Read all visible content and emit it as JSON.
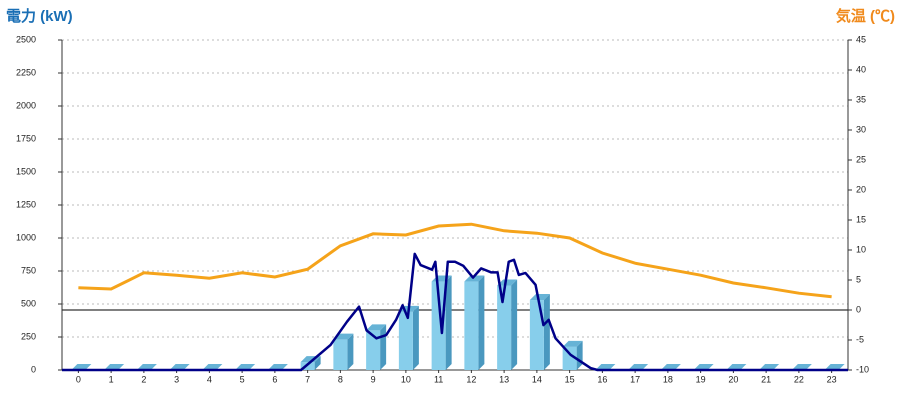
{
  "chart_data": {
    "type": "bar",
    "y_title": "電力 (kW)",
    "y2_title": "気温 (℃)",
    "categories": [
      "0",
      "1",
      "2",
      "3",
      "4",
      "5",
      "6",
      "7",
      "8",
      "9",
      "10",
      "11",
      "12",
      "13",
      "14",
      "15",
      "16",
      "17",
      "18",
      "19",
      "20",
      "21",
      "22",
      "23"
    ],
    "xlim": [
      -0.5,
      23.5
    ],
    "ylim": [
      0,
      2500
    ],
    "yticks": [
      0,
      250,
      500,
      750,
      1000,
      1250,
      1500,
      1750,
      2000,
      2250,
      2500
    ],
    "y2lim": [
      -10,
      45
    ],
    "y2ticks": [
      -10,
      -5,
      0,
      5,
      10,
      15,
      20,
      25,
      30,
      35,
      40,
      45
    ],
    "grid": true,
    "bars": {
      "color": "#87ceeb",
      "values": [
        0,
        0,
        0,
        0,
        0,
        0,
        0,
        60,
        230,
        300,
        440,
        670,
        670,
        640,
        530,
        175,
        0,
        0,
        0,
        0,
        0,
        0,
        0,
        0
      ]
    },
    "power_line": {
      "color": "#000088",
      "x": [
        -0.5,
        6.8,
        7.7,
        8.2,
        8.57,
        8.8,
        9.1,
        9.4,
        9.7,
        9.9,
        10.06,
        10.27,
        10.45,
        10.8,
        10.9,
        11.1,
        11.28,
        11.5,
        11.75,
        12.05,
        12.3,
        12.6,
        12.8,
        12.95,
        13.14,
        13.3,
        13.45,
        13.65,
        13.96,
        14.2,
        14.36,
        14.57,
        15.03,
        15.64,
        15.85,
        23.5
      ],
      "values": [
        0,
        0,
        190,
        365,
        480,
        300,
        240,
        265,
        380,
        490,
        395,
        880,
        795,
        760,
        820,
        280,
        820,
        820,
        790,
        700,
        770,
        740,
        740,
        515,
        820,
        835,
        720,
        735,
        645,
        340,
        380,
        240,
        115,
        15,
        0,
        0
      ]
    },
    "temperature": {
      "color": "#f5a31a",
      "axis": "y2",
      "values": [
        3.7,
        3.5,
        6.2,
        5.8,
        5.3,
        6.2,
        5.5,
        6.8,
        10.7,
        12.7,
        12.5,
        14,
        14.3,
        13.2,
        12.8,
        12,
        9.5,
        7.8,
        6.8,
        5.8,
        4.5,
        3.7,
        2.8,
        2.2
      ]
    }
  }
}
